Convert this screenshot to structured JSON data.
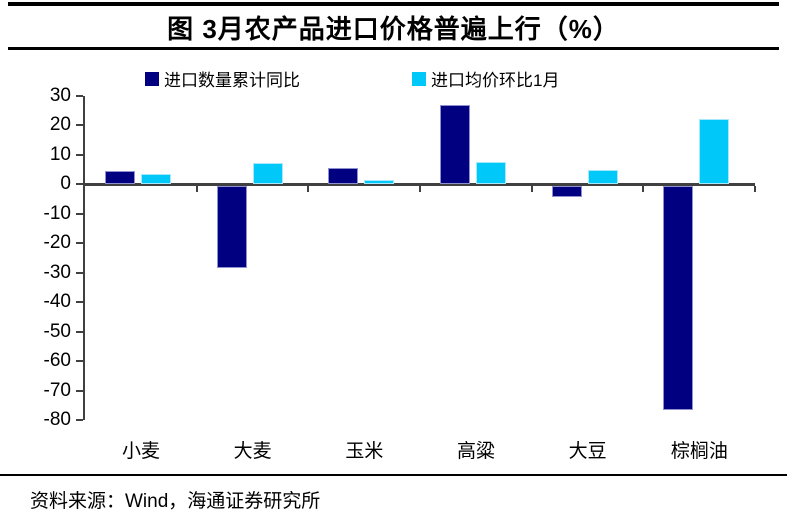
{
  "figure": {
    "title": "图 3月农产品进口价格普遍上行（%）",
    "source": "资料来源：Wind，海通证券研究所"
  },
  "chart_data": {
    "type": "bar",
    "title": "图 3月农产品进口价格普遍上行（%）",
    "categories": [
      "小麦",
      "大麦",
      "玉米",
      "高粱",
      "大豆",
      "棕榈油"
    ],
    "series": [
      {
        "name": "进口数量累计同比",
        "color": "#000080",
        "border_color": "#9090d0",
        "values": [
          4.5,
          -28,
          5.5,
          27,
          -3.7,
          -76
        ]
      },
      {
        "name": "进口均价环比1月",
        "color": "#00c8f8",
        "border_color": "#a8e8fc",
        "values": [
          3.6,
          7.2,
          1.4,
          7.6,
          4.9,
          22.3
        ]
      }
    ],
    "ylim": [
      -80,
      30
    ],
    "ytick_step": 10,
    "ytick_labels": [
      "30",
      "20",
      "10",
      "0",
      "-10",
      "-20",
      "-30",
      "-40",
      "-50",
      "-60",
      "-70",
      "-80"
    ],
    "xlabel": "",
    "ylabel": "",
    "unit": "%",
    "legend_position": "top",
    "grid": false,
    "axis_color": "#404040"
  }
}
